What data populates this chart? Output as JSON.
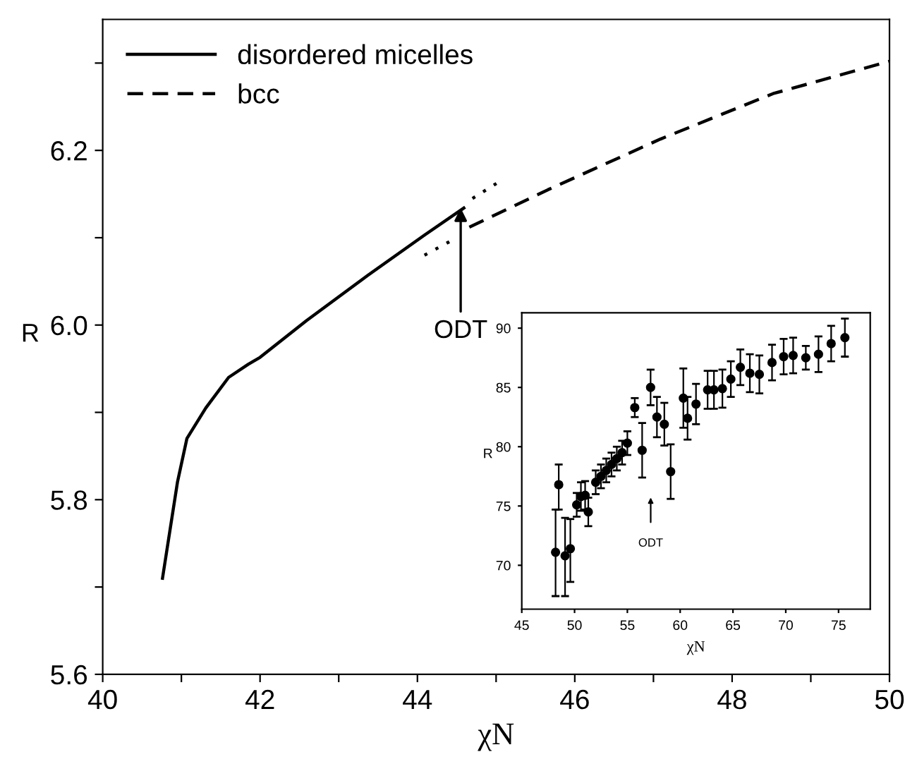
{
  "chart_data": [
    {
      "type": "line",
      "xlabel": "χN",
      "ylabel": "R",
      "xlim": [
        40,
        50
      ],
      "ylim": [
        5.6,
        6.35
      ],
      "xticks": [
        40,
        {
          "value": 41,
          "label": null
        },
        42,
        {
          "value": 43,
          "label": null
        },
        44,
        {
          "value": 45,
          "label": null
        },
        46,
        {
          "value": 47,
          "label": null
        },
        48,
        {
          "value": 49,
          "label": null
        },
        50
      ],
      "yticks": [
        5.6,
        {
          "value": 5.7,
          "label": null
        },
        5.8,
        {
          "value": 5.9,
          "label": null
        },
        {
          "value": 6.0,
          "label": "6.0"
        },
        {
          "value": 6.1,
          "label": null
        },
        6.2,
        {
          "value": 6.3,
          "label": null
        }
      ],
      "grid": false,
      "legend": "top left",
      "marker": "none",
      "series": [
        {
          "name": "disordered micelles",
          "color": "#000000",
          "line_style": "solid",
          "x": [
            40.76,
            40.95,
            41.07,
            41.31,
            41.6,
            41.85,
            42.0,
            42.59,
            43.37,
            44.09,
            44.59
          ],
          "values": [
            5.71,
            5.82,
            5.87,
            5.905,
            5.94,
            5.955,
            5.963,
            6.005,
            6.057,
            6.103,
            6.134
          ]
        },
        {
          "name": "bcc",
          "color": "#000000",
          "line_style": "dashed",
          "x": [
            44.66,
            45.66,
            47.09,
            48.52,
            50.0
          ],
          "values": [
            6.112,
            6.155,
            6.213,
            6.265,
            6.302
          ]
        },
        {
          "color": "#000000",
          "line_style": "dotted",
          "x": [
            44.09,
            44.5
          ],
          "values": [
            6.08,
            6.1
          ]
        },
        {
          "color": "#000000",
          "line_style": "dotted",
          "x": [
            44.7,
            45.02
          ],
          "values": [
            6.145,
            6.163
          ]
        }
      ],
      "annotations": [
        {
          "text": "ODT",
          "x": 44.55,
          "y": 6.134
        }
      ]
    },
    {
      "type": "scatter",
      "xlabel": "χN",
      "ylabel": "R",
      "xlim": [
        45,
        78
      ],
      "ylim": [
        66.3,
        91.3
      ],
      "xticks": [
        45,
        50,
        55,
        60,
        65,
        70,
        75
      ],
      "yticks": [
        70,
        75,
        80,
        85,
        90
      ],
      "grid": false,
      "marker": "circle",
      "series": [
        {
          "color": "#000000",
          "x": [
            48.2,
            48.5,
            49.1,
            49.6,
            50.2,
            50.6,
            51.0,
            51.3,
            52.0,
            52.5,
            53.0,
            53.5,
            54.0,
            54.5,
            55.0,
            55.7,
            56.4,
            57.2,
            57.8,
            58.5,
            59.1,
            60.3,
            60.7,
            61.5,
            62.6,
            63.2,
            64.0,
            64.8,
            65.7,
            66.6,
            67.5,
            68.7,
            69.8,
            70.7,
            71.9,
            73.1,
            74.3,
            75.6
          ],
          "values": [
            71.1,
            76.8,
            70.8,
            71.4,
            75.1,
            75.8,
            75.9,
            74.5,
            77.0,
            77.5,
            78.0,
            78.5,
            79.0,
            79.5,
            80.3,
            83.3,
            79.7,
            85.0,
            82.5,
            81.9,
            77.9,
            84.1,
            82.4,
            83.6,
            84.8,
            84.8,
            84.9,
            85.7,
            86.7,
            86.2,
            86.1,
            87.1,
            87.6,
            87.7,
            87.5,
            87.8,
            88.7,
            89.2
          ],
          "errors": [
            [
              67.4,
              74.7
            ],
            [
              74.7,
              78.5
            ],
            [
              67.4,
              74.0
            ],
            [
              68.6,
              73.9
            ],
            1.0,
            1.2,
            1.2,
            1.2,
            1.0,
            1.0,
            1.0,
            1.0,
            1.0,
            1.0,
            1.0,
            0.8,
            2.3,
            1.5,
            1.7,
            1.8,
            2.3,
            2.5,
            1.8,
            1.7,
            1.6,
            1.6,
            1.6,
            1.5,
            1.5,
            1.6,
            1.6,
            1.5,
            1.5,
            1.5,
            1.0,
            1.5,
            1.5,
            1.6
          ]
        }
      ],
      "annotations": [
        "ODT"
      ]
    }
  ]
}
